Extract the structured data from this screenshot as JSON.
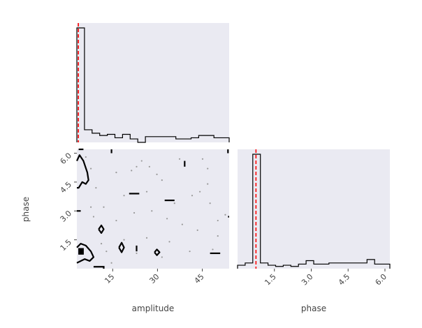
{
  "chart_data": [
    {
      "type": "histogram",
      "variable": "amplitude",
      "xlim": [
        3,
        54
      ],
      "truth": 3.5,
      "bin_width": 2.55,
      "counts": [
        100,
        11,
        8,
        6,
        7,
        4,
        7,
        3,
        0,
        5,
        5,
        5,
        5,
        3,
        3,
        4,
        6,
        6,
        4,
        4
      ],
      "truth_color": "#ff0000",
      "line_color": "#000000",
      "background": "#eaeaf2"
    },
    {
      "type": "contour",
      "xlabel": "amplitude",
      "ylabel": "phase",
      "xlim": [
        3,
        54
      ],
      "ylim": [
        0,
        6.2
      ],
      "xticks": [
        15,
        30,
        45
      ],
      "xtick_labels": [
        "15",
        "30",
        "45"
      ],
      "yticks": [
        1.5,
        3.0,
        4.5,
        6.0
      ],
      "ytick_labels": [
        "1.5",
        "3.0",
        "4.5",
        "6.0"
      ],
      "background": "#eaeaf2",
      "contour_color": "#000000",
      "scatter_points": [
        [
          7.7,
          5.2
        ],
        [
          9.4,
          4.2
        ],
        [
          16.2,
          5.0
        ],
        [
          21.3,
          5.1
        ],
        [
          23.0,
          5.3
        ],
        [
          27.3,
          5.3
        ],
        [
          29.8,
          4.9
        ],
        [
          31.5,
          4.6
        ],
        [
          37.4,
          5.7
        ],
        [
          45.1,
          5.7
        ],
        [
          46.8,
          5.2
        ],
        [
          44.2,
          4.0
        ],
        [
          41.6,
          3.8
        ],
        [
          35.7,
          3.4
        ],
        [
          26.4,
          4.0
        ],
        [
          18.8,
          3.8
        ],
        [
          12.0,
          3.2
        ],
        [
          8.6,
          2.7
        ],
        [
          16.2,
          2.5
        ],
        [
          22.2,
          2.9
        ],
        [
          28.1,
          3.0
        ],
        [
          33.2,
          2.6
        ],
        [
          38.3,
          2.3
        ],
        [
          43.4,
          2.0
        ],
        [
          47.6,
          3.4
        ],
        [
          50.2,
          2.5
        ],
        [
          52.7,
          2.8
        ],
        [
          11.2,
          1.3
        ],
        [
          18.8,
          1.5
        ],
        [
          26.4,
          1.6
        ],
        [
          34.0,
          1.4
        ],
        [
          40.8,
          0.9
        ],
        [
          48.5,
          1.0
        ],
        [
          14.6,
          0.3
        ],
        [
          23.0,
          0.8
        ],
        [
          31.5,
          0.6
        ],
        [
          6.0,
          5.8
        ],
        [
          7.7,
          3.2
        ],
        [
          12.9,
          0.9
        ],
        [
          50.2,
          1.7
        ],
        [
          24.7,
          5.6
        ],
        [
          46.8,
          4.4
        ]
      ],
      "contours": [
        [
          [
            3,
            5.6
          ],
          [
            3.9,
            5.9
          ],
          [
            5.2,
            5.6
          ],
          [
            6.5,
            5.0
          ],
          [
            6.9,
            4.6
          ],
          [
            6.0,
            4.4
          ],
          [
            4.8,
            4.5
          ],
          [
            3.6,
            4.2
          ],
          [
            3,
            4.2
          ]
        ],
        [
          [
            3,
            1.1
          ],
          [
            4.3,
            1.3
          ],
          [
            6.0,
            1.2
          ],
          [
            7.7,
            0.9
          ],
          [
            8.6,
            0.6
          ],
          [
            7.3,
            0.4
          ],
          [
            5.6,
            0.5
          ],
          [
            4.3,
            0.4
          ],
          [
            3,
            0.3
          ]
        ],
        [
          [
            10.3,
            2.05
          ],
          [
            11.2,
            2.25
          ],
          [
            12.0,
            2.05
          ],
          [
            11.2,
            1.85
          ],
          [
            10.3,
            2.05
          ]
        ],
        [
          [
            17.1,
            1.1
          ],
          [
            18.0,
            1.35
          ],
          [
            18.8,
            1.1
          ],
          [
            18.0,
            0.85
          ],
          [
            17.1,
            1.1
          ]
        ],
        [
          [
            29.0,
            0.85
          ],
          [
            29.8,
            1.0
          ],
          [
            30.7,
            0.85
          ],
          [
            29.8,
            0.7
          ],
          [
            29.0,
            0.85
          ]
        ]
      ],
      "filled_blobs": [
        [
          [
            3.6,
            1.05
          ],
          [
            5.2,
            1.05
          ],
          [
            5.2,
            0.75
          ],
          [
            3.6,
            0.75
          ]
        ]
      ],
      "dashes": [
        [
          [
            23.0,
            1.2
          ],
          [
            23.0,
            0.9
          ]
        ],
        [
          [
            20.5,
            3.9
          ],
          [
            23.9,
            3.9
          ]
        ],
        [
          [
            32.4,
            3.55
          ],
          [
            35.7,
            3.55
          ]
        ],
        [
          [
            39.1,
            5.6
          ],
          [
            39.1,
            5.3
          ]
        ],
        [
          [
            47.6,
            0.8
          ],
          [
            51.0,
            0.8
          ]
        ],
        [
          [
            14.6,
            6.2
          ],
          [
            14.6,
            6.0
          ]
        ],
        [
          [
            53.6,
            6.2
          ],
          [
            53.6,
            6.0
          ]
        ],
        [
          [
            53.6,
            2.7
          ],
          [
            54.0,
            2.7
          ]
        ],
        [
          [
            3.6,
            6.2
          ],
          [
            5.2,
            6.2
          ]
        ],
        [
          [
            8.6,
            0.1
          ],
          [
            12.0,
            0.1
          ],
          [
            12.0,
            0.0
          ]
        ],
        [
          [
            3,
            3.0
          ],
          [
            4.3,
            3.0
          ]
        ]
      ]
    },
    {
      "type": "histogram",
      "variable": "phase",
      "xlabel": "phase",
      "xlim": [
        0,
        6.2
      ],
      "truth": 0.75,
      "bin_width": 0.31,
      "xticks": [
        1.5,
        3.0,
        4.5,
        6.0
      ],
      "xtick_labels": [
        "1.5",
        "3.0",
        "4.5",
        "6.0"
      ],
      "counts": [
        3,
        5,
        100,
        5,
        3,
        2,
        3,
        2,
        4,
        7,
        4,
        4,
        5,
        5,
        5,
        5,
        5,
        8,
        4,
        4
      ],
      "truth_color": "#ff0000",
      "line_color": "#000000",
      "background": "#eaeaf2"
    }
  ]
}
